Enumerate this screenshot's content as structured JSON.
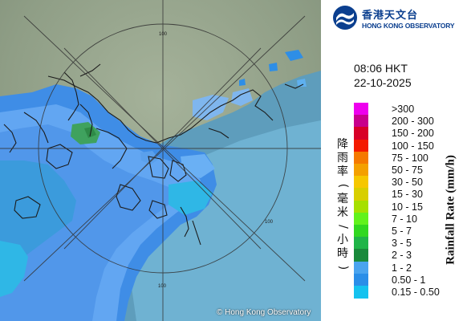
{
  "header": {
    "logo_cn": "香港天文台",
    "logo_en": "HONG KONG OBSERVATORY",
    "time": "08:06 HKT",
    "date": "22-10-2025"
  },
  "map": {
    "copyright": "© Hong Kong Observatory",
    "range_rings": [
      {
        "label": "100"
      },
      {
        "label": "200"
      }
    ]
  },
  "legend": {
    "title_cn": "降雨率(毫米/小時)",
    "title_en": "Rainfall Rate (mm/h)",
    "items": [
      {
        "label": ">300",
        "color": "#ee00ee"
      },
      {
        "label": "200 - 300",
        "color": "#c8008c"
      },
      {
        "label": "150 - 200",
        "color": "#d80028"
      },
      {
        "label": "100 - 150",
        "color": "#f41a00"
      },
      {
        "label": "75 - 100",
        "color": "#f57900"
      },
      {
        "label": "50 - 75",
        "color": "#f4a000"
      },
      {
        "label": "30 - 50",
        "color": "#f6c700"
      },
      {
        "label": "15 - 30",
        "color": "#d8cf00"
      },
      {
        "label": "10 - 15",
        "color": "#a6e000"
      },
      {
        "label": "7 - 10",
        "color": "#61f21c"
      },
      {
        "label": "5 - 7",
        "color": "#30d820"
      },
      {
        "label": "3 - 5",
        "color": "#1fb548"
      },
      {
        "label": "2 - 3",
        "color": "#198a3b"
      },
      {
        "label": "1 - 2",
        "color": "#4aa4ef"
      },
      {
        "label": "0.50 - 1",
        "color": "#2a8ee8"
      },
      {
        "label": "0.15 - 0.50",
        "color": "#15c2ef"
      }
    ]
  }
}
